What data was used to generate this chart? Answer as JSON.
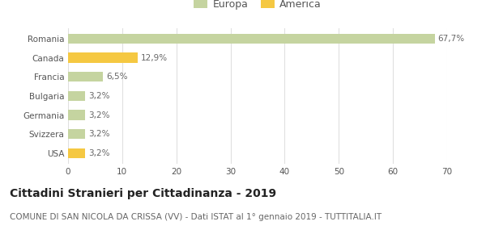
{
  "categories": [
    "Romania",
    "Canada",
    "Francia",
    "Bulgaria",
    "Germania",
    "Svizzera",
    "USA"
  ],
  "values": [
    67.7,
    12.9,
    6.5,
    3.2,
    3.2,
    3.2,
    3.2
  ],
  "labels": [
    "67,7%",
    "12,9%",
    "6,5%",
    "3,2%",
    "3,2%",
    "3,2%",
    "3,2%"
  ],
  "colors": [
    "#c5d4a0",
    "#f5c842",
    "#c5d4a0",
    "#c5d4a0",
    "#c5d4a0",
    "#c5d4a0",
    "#f5c842"
  ],
  "legend_items": [
    {
      "label": "Europa",
      "color": "#c5d4a0"
    },
    {
      "label": "America",
      "color": "#f5c842"
    }
  ],
  "xlim": [
    0,
    70
  ],
  "xticks": [
    0,
    10,
    20,
    30,
    40,
    50,
    60,
    70
  ],
  "title": "Cittadini Stranieri per Cittadinanza - 2019",
  "subtitle": "COMUNE DI SAN NICOLA DA CRISSA (VV) - Dati ISTAT al 1° gennaio 2019 - TUTTITALIA.IT",
  "title_fontsize": 10,
  "subtitle_fontsize": 7.5,
  "bar_height": 0.52,
  "background_color": "#ffffff",
  "grid_color": "#e0e0e0",
  "label_fontsize": 7.5,
  "tick_fontsize": 7.5
}
